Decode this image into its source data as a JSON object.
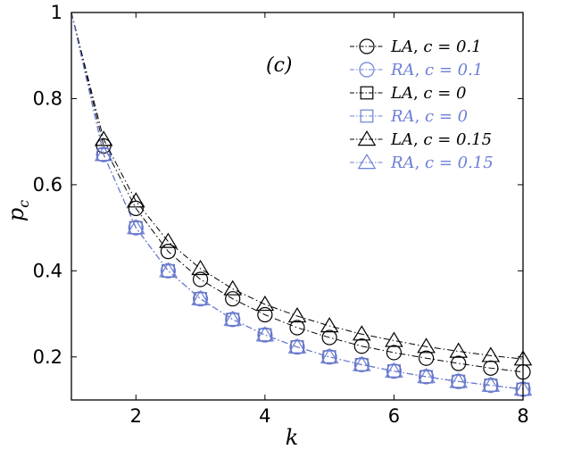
{
  "chart_data": {
    "type": "line",
    "title": "",
    "annotation": "(c)",
    "xlabel": "k",
    "ylabel": "p_c",
    "xlim": [
      1,
      8
    ],
    "ylim": [
      0.1,
      1.0
    ],
    "xticks": [
      2,
      4,
      6,
      8
    ],
    "yticks": [
      0.2,
      0.4,
      0.6,
      0.8,
      1
    ],
    "ytick_labels": [
      "0.2",
      "0.4",
      "0.6",
      "0.8",
      "1"
    ],
    "grid": false,
    "legend_position": "top-right",
    "x": [
      1.5,
      2,
      2.5,
      3,
      3.5,
      4,
      4.5,
      5,
      5.5,
      6,
      6.5,
      7,
      7.5,
      8
    ],
    "series": [
      {
        "name": "LA, c = 0.1",
        "label_main": "LA",
        "label_param": "c = 0.1",
        "marker": "circle",
        "color": "#000000",
        "linestyle": "dashdot",
        "values": [
          0.69,
          0.545,
          0.445,
          0.38,
          0.335,
          0.298,
          0.268,
          0.245,
          0.225,
          0.21,
          0.197,
          0.185,
          0.174,
          0.165
        ]
      },
      {
        "name": "RA, c = 0.1",
        "label_main": "RA",
        "label_param": "c = 0.1",
        "marker": "circle",
        "color": "#6d7fd6",
        "linestyle": "dashdot",
        "values": [
          0.67,
          0.5,
          0.4,
          0.335,
          0.287,
          0.251,
          0.223,
          0.2,
          0.182,
          0.167,
          0.154,
          0.143,
          0.134,
          0.125
        ]
      },
      {
        "name": "LA, c = 0",
        "label_main": "LA",
        "label_param": "c = 0",
        "marker": "square",
        "color": "#000000",
        "linestyle": "dashdot",
        "values": [
          0.67,
          0.5,
          0.4,
          0.335,
          0.287,
          0.251,
          0.223,
          0.2,
          0.182,
          0.167,
          0.154,
          0.143,
          0.134,
          0.125
        ]
      },
      {
        "name": "RA, c = 0",
        "label_main": "RA",
        "label_param": "c = 0",
        "marker": "square",
        "color": "#6d7fd6",
        "linestyle": "dashdot",
        "values": [
          0.67,
          0.5,
          0.4,
          0.335,
          0.287,
          0.251,
          0.223,
          0.2,
          0.182,
          0.167,
          0.154,
          0.143,
          0.134,
          0.125
        ]
      },
      {
        "name": "LA, c = 0.15",
        "label_main": "LA",
        "label_param": "c = 0.15",
        "marker": "triangle",
        "color": "#000000",
        "linestyle": "dashdot",
        "values": [
          0.705,
          0.562,
          0.468,
          0.405,
          0.358,
          0.322,
          0.295,
          0.272,
          0.253,
          0.238,
          0.224,
          0.213,
          0.203,
          0.195
        ]
      },
      {
        "name": "RA, c = 0.15",
        "label_main": "RA",
        "label_param": "c = 0.15",
        "marker": "triangle",
        "color": "#6d7fd6",
        "linestyle": "dashdot",
        "values": [
          0.67,
          0.5,
          0.4,
          0.335,
          0.287,
          0.251,
          0.223,
          0.2,
          0.182,
          0.167,
          0.154,
          0.143,
          0.134,
          0.125
        ]
      }
    ]
  }
}
